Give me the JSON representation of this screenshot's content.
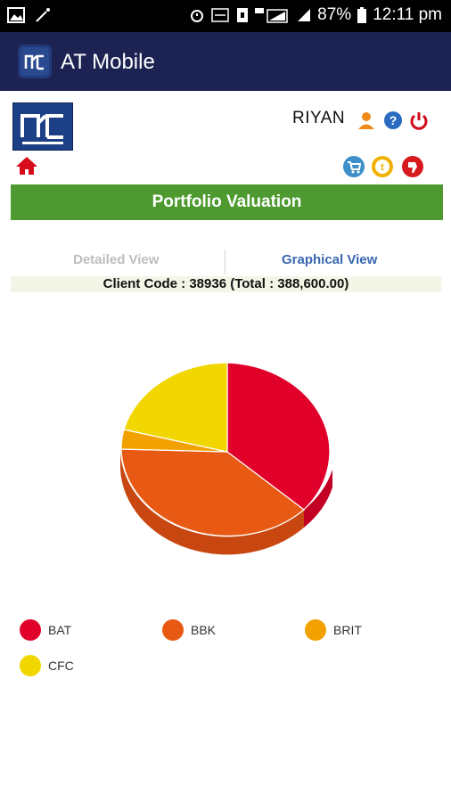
{
  "status": {
    "battery": "87%",
    "time": "12:11 pm"
  },
  "app": {
    "title": "AT Mobile"
  },
  "user": {
    "name": "RIYAN"
  },
  "page": {
    "title": "Portfolio Valuation"
  },
  "tabs": [
    {
      "label": "Detailed View"
    },
    {
      "label": "Graphical View"
    }
  ],
  "client": {
    "line": "Client Code : 38936 (Total : 388,600.00)"
  },
  "colors": {
    "BAT": "#e0002a",
    "BBK": "#e85a13",
    "BRIT": "#f2a100",
    "CFC": "#f2d600",
    "appbar": "#1c2352",
    "title": "#4e9a31"
  },
  "chart_data": {
    "type": "pie",
    "categories": [
      "BAT",
      "BBK",
      "BRIT",
      "CFC"
    ],
    "values": [
      0.38,
      0.36,
      0.04,
      0.22
    ]
  },
  "legend": [
    {
      "label": "BAT"
    },
    {
      "label": "BBK"
    },
    {
      "label": "BRIT"
    },
    {
      "label": "CFC"
    }
  ]
}
